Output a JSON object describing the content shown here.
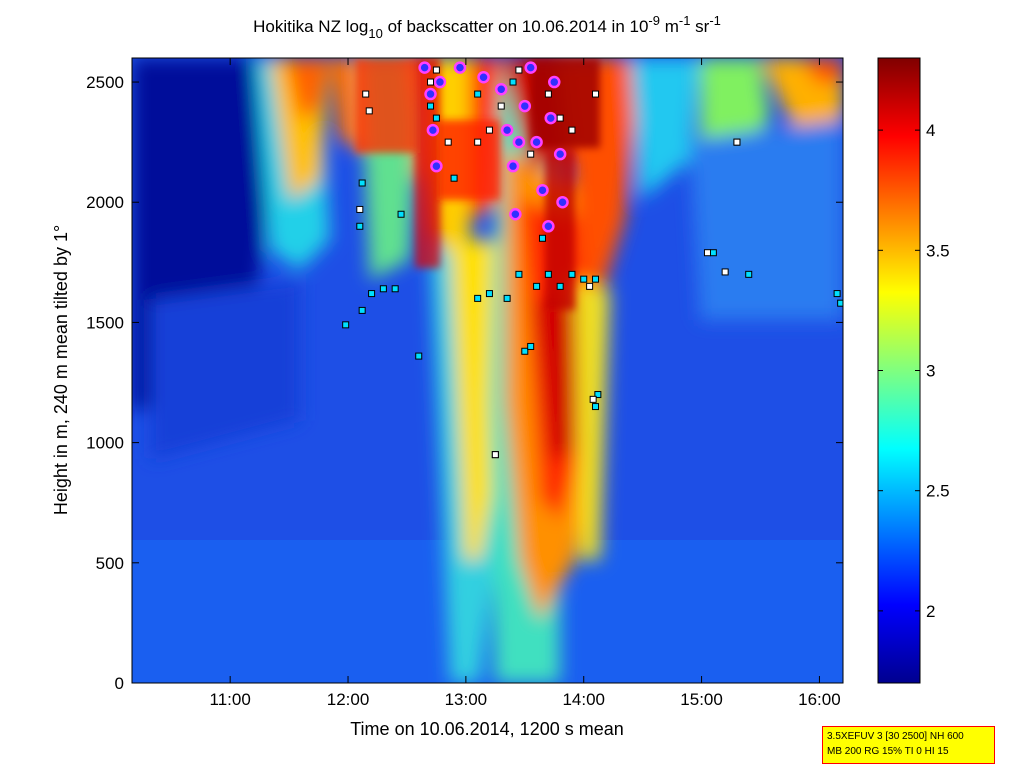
{
  "chart_data": {
    "type": "heatmap",
    "title": "Hokitika NZ log",
    "title_sub": "10",
    "title_mid": " of backscatter on 10.06.2014 in 10",
    "title_sup1": "-9",
    "title_m": " m",
    "title_sup2": "-1",
    "title_sr": " sr",
    "title_sup3": "-1",
    "xlabel": "Time on 10.06.2014, 1200 s mean",
    "ylabel": "Height in m, 240 m mean tilted by 1°",
    "xlim": [
      10.167,
      16.2
    ],
    "ylim": [
      0,
      2600
    ],
    "x_ticks": [
      {
        "value": 11,
        "label": "11:00"
      },
      {
        "value": 12,
        "label": "12:00"
      },
      {
        "value": 13,
        "label": "13:00"
      },
      {
        "value": 14,
        "label": "14:00"
      },
      {
        "value": 15,
        "label": "15:00"
      },
      {
        "value": 16,
        "label": "16:00"
      }
    ],
    "y_ticks": [
      {
        "value": 0,
        "label": "0"
      },
      {
        "value": 500,
        "label": "500"
      },
      {
        "value": 1000,
        "label": "1000"
      },
      {
        "value": 1500,
        "label": "1500"
      },
      {
        "value": 2000,
        "label": "2000"
      },
      {
        "value": 2500,
        "label": "2500"
      }
    ],
    "colorbar": {
      "range": [
        1.7,
        4.3
      ],
      "ticks": [
        {
          "value": 2,
          "label": "2"
        },
        {
          "value": 2.5,
          "label": "2.5"
        },
        {
          "value": 3,
          "label": "3"
        },
        {
          "value": 3.5,
          "label": "3.5"
        },
        {
          "value": 4,
          "label": "4"
        }
      ],
      "colormap": "jet"
    },
    "cloud_base_points_cyan": [
      [
        12.12,
        1550
      ],
      [
        12.1,
        1900
      ],
      [
        12.12,
        2080
      ],
      [
        12.2,
        1620
      ],
      [
        12.3,
        1640
      ],
      [
        12.4,
        1640
      ],
      [
        12.45,
        1950
      ],
      [
        11.98,
        1490
      ],
      [
        12.6,
        1360
      ],
      [
        12.75,
        2350
      ],
      [
        12.9,
        2100
      ],
      [
        13.1,
        1600
      ],
      [
        13.2,
        1620
      ],
      [
        13.25,
        950
      ],
      [
        13.35,
        1600
      ],
      [
        13.45,
        1700
      ],
      [
        13.5,
        1380
      ],
      [
        13.55,
        1400
      ],
      [
        13.6,
        1650
      ],
      [
        13.65,
        1850
      ],
      [
        13.7,
        1700
      ],
      [
        13.8,
        1650
      ],
      [
        13.9,
        1700
      ],
      [
        14.0,
        1680
      ],
      [
        14.1,
        1680
      ],
      [
        14.1,
        1150
      ],
      [
        14.12,
        1200
      ],
      [
        15.1,
        1790
      ],
      [
        15.3,
        2250
      ],
      [
        15.4,
        1700
      ],
      [
        16.15,
        1620
      ],
      [
        16.18,
        1580
      ],
      [
        12.7,
        2400
      ],
      [
        13.1,
        2450
      ],
      [
        13.4,
        2500
      ]
    ],
    "cloud_top_points_white": [
      [
        12.1,
        1970
      ],
      [
        12.15,
        2450
      ],
      [
        12.18,
        2380
      ],
      [
        12.7,
        2500
      ],
      [
        12.75,
        2550
      ],
      [
        12.85,
        2250
      ],
      [
        13.1,
        2250
      ],
      [
        13.2,
        2300
      ],
      [
        13.3,
        2400
      ],
      [
        13.45,
        2550
      ],
      [
        13.55,
        2200
      ],
      [
        13.7,
        2450
      ],
      [
        13.8,
        2350
      ],
      [
        13.9,
        2300
      ],
      [
        14.05,
        1650
      ],
      [
        14.1,
        2450
      ],
      [
        15.3,
        2250
      ],
      [
        15.05,
        1790
      ],
      [
        15.2,
        1710
      ],
      [
        13.25,
        950
      ],
      [
        14.08,
        1180
      ]
    ],
    "aerosol_layer_points_magenta": [
      [
        12.65,
        2560
      ],
      [
        12.7,
        2450
      ],
      [
        12.72,
        2300
      ],
      [
        12.75,
        2150
      ],
      [
        12.78,
        2500
      ],
      [
        12.95,
        2560
      ],
      [
        13.15,
        2520
      ],
      [
        13.3,
        2470
      ],
      [
        13.35,
        2300
      ],
      [
        13.4,
        2150
      ],
      [
        13.42,
        1950
      ],
      [
        13.5,
        2400
      ],
      [
        13.55,
        2560
      ],
      [
        13.6,
        2250
      ],
      [
        13.65,
        2050
      ],
      [
        13.7,
        1900
      ],
      [
        13.75,
        2500
      ],
      [
        13.8,
        2200
      ],
      [
        13.82,
        2000
      ],
      [
        13.72,
        2350
      ],
      [
        13.45,
        2250
      ]
    ]
  },
  "info_box": {
    "line1": "3.5XEFUV 3 [30 2500] NH 600",
    "line2": "MB 200 RG 15% TI 0 HI 15"
  }
}
